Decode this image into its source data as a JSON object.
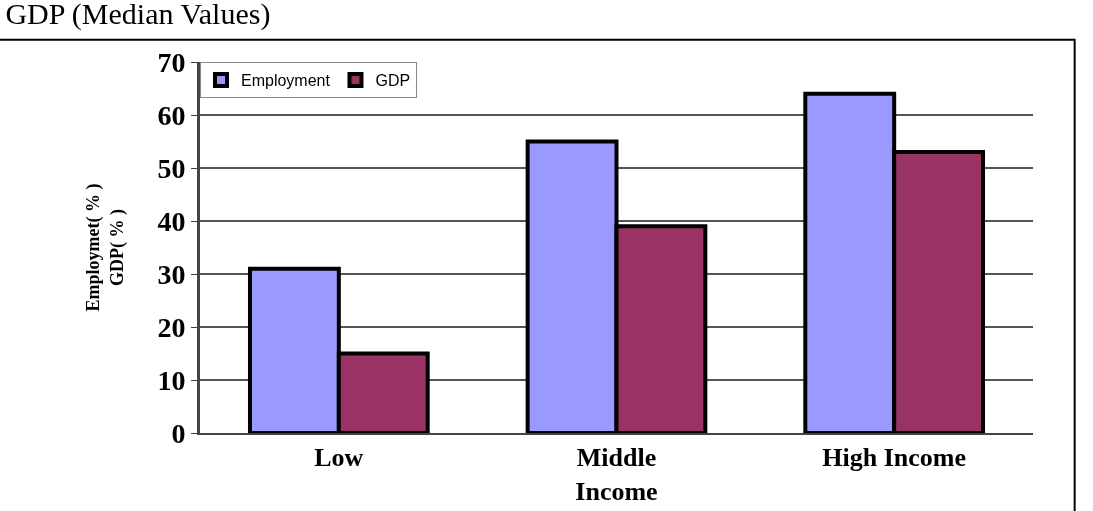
{
  "chart_data": {
    "type": "bar",
    "title": "GDP (Median Values)",
    "ylabel": "Employmet( % )\nGDP( % )",
    "categories": [
      "Low",
      "Middle\nIncome",
      "High Income"
    ],
    "series": [
      {
        "name": "Employment",
        "color": "#9999ff",
        "values": [
          31,
          55,
          64
        ]
      },
      {
        "name": "GDP",
        "color": "#993366",
        "values": [
          15,
          39,
          53
        ]
      }
    ],
    "ylim": [
      0,
      70
    ],
    "yticks": [
      0,
      10,
      20,
      30,
      40,
      50,
      60,
      70
    ],
    "grid": "y",
    "legend": "top left"
  }
}
